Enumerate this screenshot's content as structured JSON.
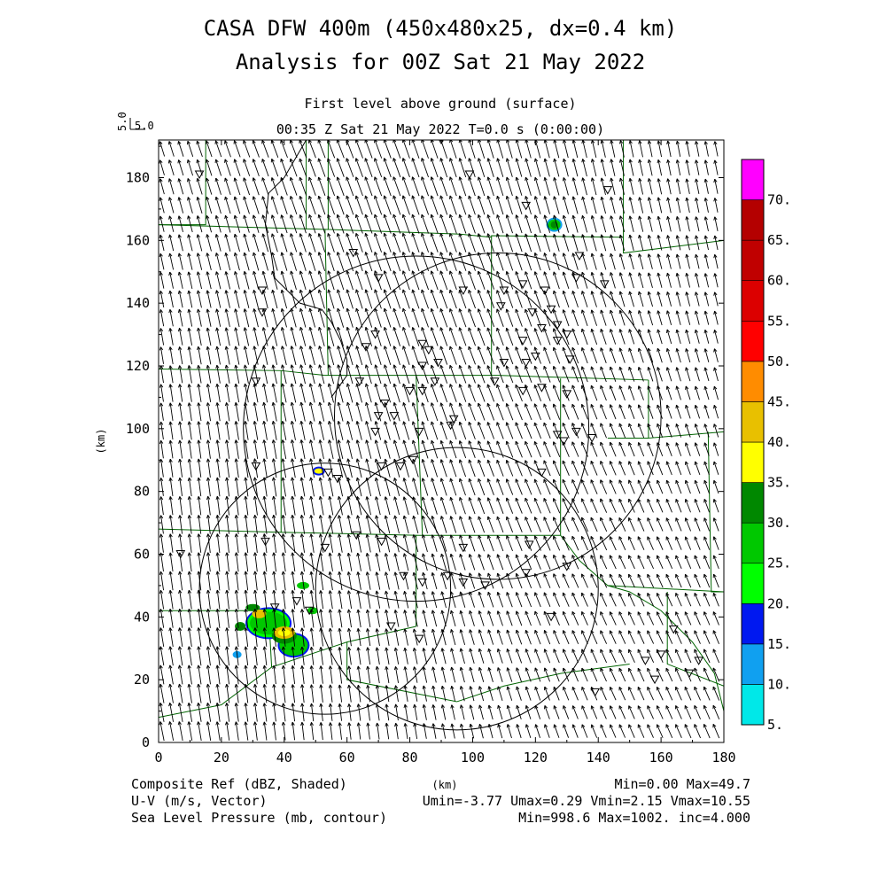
{
  "title": {
    "line1": "CASA DFW 400m (450x480x25, dx=0.4 km)",
    "line2": "Analysis for 00Z Sat 21 May 2022"
  },
  "subtitle": {
    "level": "First level above ground (surface)",
    "time": "00:35 Z Sat 21 May 2022    T=0.0 s (0:00:00)"
  },
  "vector_scale": {
    "rotated_label": "5.0",
    "label": "5.0"
  },
  "axes": {
    "x": {
      "label": "(km)",
      "min": 0,
      "max": 180,
      "ticks": [
        0,
        20,
        40,
        60,
        80,
        100,
        120,
        140,
        160,
        180
      ]
    },
    "y": {
      "label": "(km)",
      "min": 0,
      "max": 192,
      "ticks": [
        0,
        20,
        40,
        60,
        80,
        100,
        120,
        140,
        160,
        180
      ]
    }
  },
  "colorbar": {
    "labels": [
      "5.",
      "10.",
      "15.",
      "20.",
      "25.",
      "30.",
      "35.",
      "40.",
      "45.",
      "50.",
      "55.",
      "60.",
      "65.",
      "70."
    ],
    "colors": [
      "#00e8e8",
      "#10a0f0",
      "#0018f0",
      "#00ff00",
      "#00c800",
      "#008800",
      "#ffff00",
      "#e8c000",
      "#ff8c00",
      "#ff0000",
      "#dc0000",
      "#c00000",
      "#b40000",
      "#ff00ff"
    ]
  },
  "footer": {
    "left": [
      "Composite Ref (dBZ, Shaded)",
      "U-V (m/s, Vector)",
      "Sea Level Pressure (mb, contour)"
    ],
    "center": "(km)",
    "right": [
      "Min=0.00 Max=49.7",
      "Umin=-3.77 Umax=0.29 Vmin=2.15 Vmax=10.55",
      "Min=998.6 Max=1002. inc=4.000"
    ]
  },
  "radar_rings": [
    {
      "cx": 82,
      "cy": 100,
      "r": 55
    },
    {
      "cx": 108,
      "cy": 104,
      "r": 52
    },
    {
      "cx": 95,
      "cy": 49,
      "r": 45
    },
    {
      "cx": 53,
      "cy": 49,
      "r": 40
    }
  ],
  "wind": {
    "u": -1.6,
    "v": 6.5
  },
  "colors": {
    "county_lines": "#006400",
    "state_outline": "#000000",
    "arrows": "#000000"
  }
}
